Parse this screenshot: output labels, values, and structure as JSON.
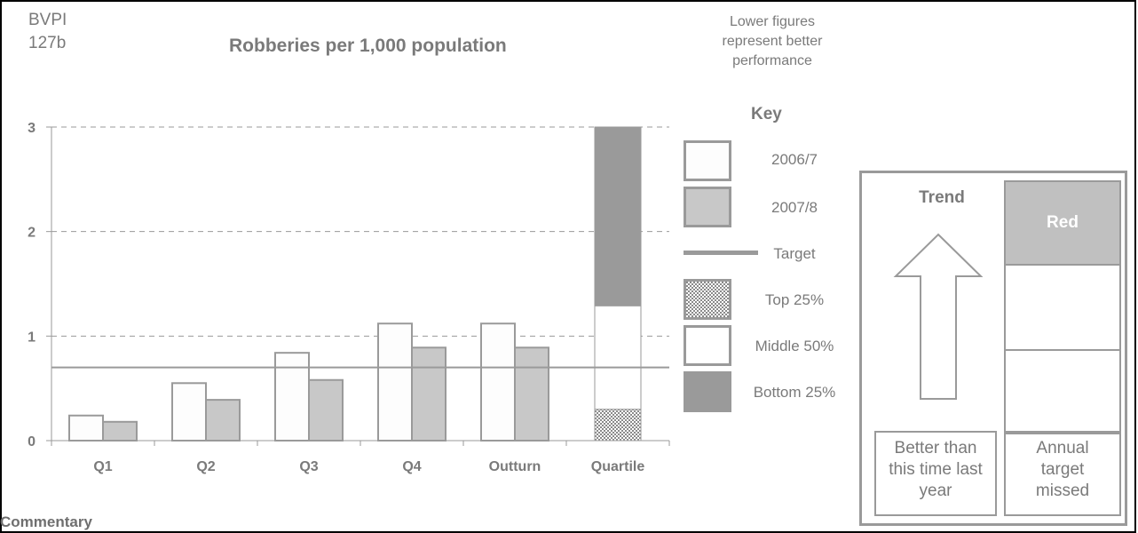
{
  "header": {
    "bvpi": "BVPI",
    "code": "127b",
    "title": "Robberies per 1,000 population",
    "note": [
      "Lower figures",
      "represent better",
      "performance"
    ]
  },
  "key": {
    "title": "Key",
    "items": [
      "2006/7",
      "2007/8",
      "Target",
      "Top 25%",
      "Middle 50%",
      "Bottom 25%"
    ]
  },
  "performance": {
    "trend_label": "Trend",
    "trend_direction": "up",
    "status": "Red",
    "status_color": "#c0c0c0",
    "trend_caption": [
      "Better than",
      "this time last",
      "year"
    ],
    "target_caption": [
      "Annual",
      "target",
      "missed"
    ]
  },
  "commentary_label": "Commentary",
  "colors": {
    "series_2006": "#ffffff",
    "series_2007": "#c8c8c8",
    "target": "#9a9a9a",
    "bottom": "#9a9a9a",
    "axis": "#9a9a9a"
  },
  "chart_data": {
    "type": "bar",
    "title": "Robberies per 1,000 population",
    "categories": [
      "Q1",
      "Q2",
      "Q3",
      "Q4",
      "Outturn",
      "Quartile"
    ],
    "series": [
      {
        "name": "2006/7",
        "values": [
          0.24,
          0.55,
          0.84,
          1.12,
          1.12,
          null
        ]
      },
      {
        "name": "2007/8",
        "values": [
          0.18,
          0.39,
          0.58,
          0.89,
          0.89,
          null
        ]
      }
    ],
    "quartile": {
      "top": 0.3,
      "middle_upper": 1.29,
      "bottom_upper": 3.0
    },
    "target": 0.7,
    "ylim": [
      0,
      3
    ],
    "yticks": [
      "0",
      "1",
      "2",
      "3"
    ],
    "grid": "dashed",
    "legend": "right"
  }
}
